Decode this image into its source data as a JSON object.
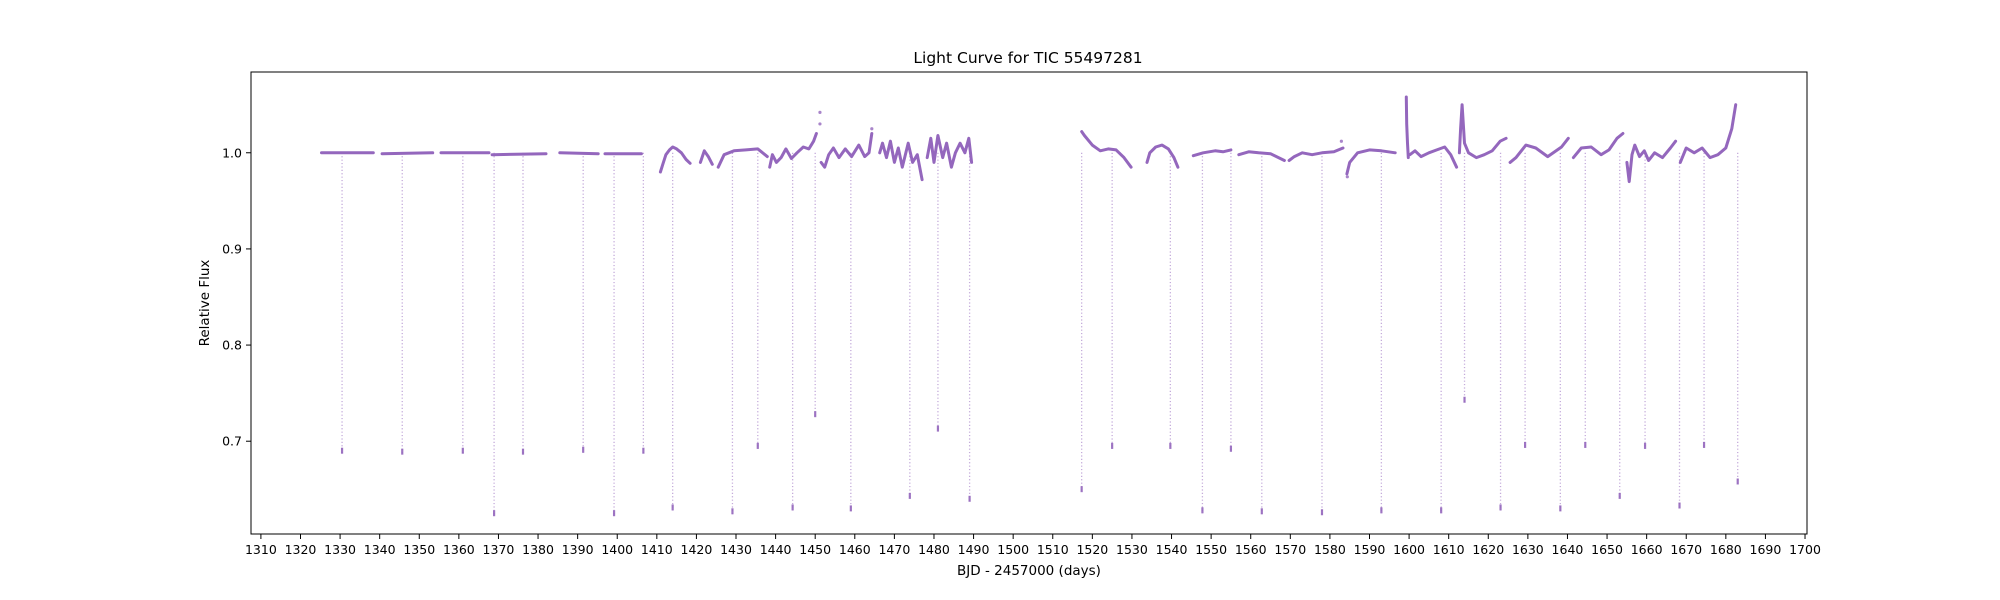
{
  "chart_data": {
    "type": "scatter",
    "title": "Light Curve for TIC 55497281",
    "xlabel": "BJD - 2457000 (days)",
    "ylabel": "Relative Flux",
    "xlim": [
      1307.5,
      1700.5
    ],
    "ylim": [
      0.6035,
      1.084
    ],
    "xticks": [
      1310,
      1320,
      1330,
      1340,
      1350,
      1360,
      1370,
      1380,
      1390,
      1400,
      1410,
      1420,
      1430,
      1440,
      1450,
      1460,
      1470,
      1480,
      1490,
      1500,
      1510,
      1520,
      1530,
      1540,
      1550,
      1560,
      1570,
      1580,
      1590,
      1600,
      1610,
      1620,
      1630,
      1640,
      1650,
      1660,
      1670,
      1680,
      1690,
      1700
    ],
    "yticks": [
      0.7,
      0.8,
      0.9,
      1.0
    ],
    "grid": false,
    "marker_color": "#9467bd",
    "series": [
      {
        "baseline_segments": [
          {
            "x": [
              1325.3,
              1338.4
            ],
            "y": [
              1.0,
              1.0
            ]
          },
          {
            "x": [
              1340.6,
              1353.4
            ],
            "y": [
              0.999,
              1.0
            ]
          },
          {
            "x": [
              1355.5,
              1367.6
            ],
            "y": [
              1.0,
              1.0
            ]
          },
          {
            "x": [
              1368.4,
              1382.0
            ],
            "y": [
              0.998,
              0.999
            ]
          },
          {
            "x": [
              1385.5,
              1395.2
            ],
            "y": [
              1.0,
              0.999
            ]
          },
          {
            "x": [
              1396.9,
              1406.1
            ],
            "y": [
              0.999,
              0.999
            ]
          },
          {
            "x": [
              1410.9,
              1411.5,
              1412.3,
              1413.2,
              1414.0,
              1415.0,
              1416.2,
              1417.4,
              1418.4
            ],
            "y": [
              0.98,
              0.988,
              0.998,
              1.003,
              1.006,
              1.004,
              1.0,
              0.993,
              0.989
            ]
          },
          {
            "x": [
              1421.0,
              1422.0,
              1423.0,
              1424.0
            ],
            "y": [
              0.99,
              1.002,
              0.996,
              0.988
            ]
          },
          {
            "x": [
              1425.5,
              1427.0,
              1429.5,
              1432.5,
              1435.5,
              1437.9
            ],
            "y": [
              0.985,
              0.998,
              1.002,
              1.003,
              1.004,
              0.996
            ]
          },
          {
            "x": [
              1438.5,
              1439.2,
              1440.2,
              1441.4,
              1442.6,
              1444.0,
              1445.4,
              1447.0,
              1448.4,
              1449.6,
              1450.3
            ],
            "y": [
              0.985,
              0.998,
              0.99,
              0.995,
              1.004,
              0.994,
              1.0,
              1.006,
              1.004,
              1.012,
              1.02
            ]
          },
          {
            "x": [
              1451.5,
              1452.4,
              1453.4,
              1454.6,
              1456.0,
              1457.6,
              1459.2,
              1461.0,
              1462.5,
              1463.6,
              1464.3
            ],
            "y": [
              0.99,
              0.985,
              0.998,
              1.005,
              0.995,
              1.004,
              0.996,
              1.008,
              0.996,
              1.0,
              1.02
            ]
          },
          {
            "x": [
              1466.3,
              1467.0,
              1468.0,
              1469.0,
              1470.0,
              1471.0,
              1472.0,
              1473.5,
              1474.6,
              1475.8,
              1477.0
            ],
            "y": [
              1.0,
              1.01,
              0.995,
              1.012,
              0.99,
              1.005,
              0.985,
              1.01,
              0.99,
              0.998,
              0.972
            ]
          },
          {
            "x": [
              1478.3,
              1479.2,
              1480.0,
              1481.0,
              1482.2,
              1483.2,
              1484.4,
              1485.4,
              1486.6,
              1487.8,
              1488.8,
              1489.5
            ],
            "y": [
              0.995,
              1.015,
              0.99,
              1.018,
              0.995,
              1.01,
              0.985,
              1.0,
              1.01,
              1.0,
              1.015,
              0.99
            ]
          },
          {
            "x": [
              1517.3,
              1518.0,
              1520.0,
              1522.0,
              1524.0,
              1526.0,
              1528.0,
              1529.8
            ],
            "y": [
              1.022,
              1.018,
              1.008,
              1.002,
              1.004,
              1.003,
              0.995,
              0.985
            ]
          },
          {
            "x": [
              1533.8,
              1534.5,
              1536.0,
              1537.6,
              1539.2,
              1540.6,
              1541.6
            ],
            "y": [
              0.99,
              1.0,
              1.006,
              1.008,
              1.004,
              0.995,
              0.985
            ]
          },
          {
            "x": [
              1545.5,
              1548.0,
              1551.0,
              1553.0,
              1555.0
            ],
            "y": [
              0.997,
              1.0,
              1.002,
              1.001,
              1.003
            ]
          },
          {
            "x": [
              1557.0,
              1559.5,
              1562.0,
              1565.0,
              1568.5
            ],
            "y": [
              0.998,
              1.001,
              1.0,
              0.999,
              0.992
            ]
          },
          {
            "x": [
              1569.7,
              1571.0,
              1573.0,
              1575.5,
              1578.0,
              1581.0,
              1583.3
            ],
            "y": [
              0.992,
              0.996,
              1.0,
              0.998,
              1.0,
              1.001,
              1.005
            ]
          },
          {
            "x": [
              1584.3,
              1585.0,
              1587.0,
              1590.0,
              1593.0,
              1596.5
            ],
            "y": [
              0.978,
              0.99,
              1.0,
              1.003,
              1.002,
              1.0
            ]
          },
          {
            "x": [
              1599.3,
              1599.4,
              1599.6,
              1599.8
            ],
            "y": [
              1.058,
              1.03,
              1.01,
              0.995
            ]
          },
          {
            "x": [
              1600.2,
              1601.5,
              1603.0,
              1605.0,
              1607.0,
              1609.0,
              1610.5,
              1612.0
            ],
            "y": [
              0.998,
              1.002,
              0.996,
              1.0,
              1.003,
              1.006,
              0.998,
              0.985
            ]
          },
          {
            "x": [
              1612.7,
              1613.0,
              1613.4,
              1614.0,
              1615.0,
              1617.0,
              1619.0,
              1621.0,
              1623.0,
              1624.5
            ],
            "y": [
              1.0,
              1.025,
              1.05,
              1.01,
              1.0,
              0.995,
              0.998,
              1.002,
              1.012,
              1.015
            ]
          },
          {
            "x": [
              1625.5,
              1627.0,
              1629.5,
              1632.0,
              1635.0,
              1638.5,
              1640.2
            ],
            "y": [
              0.99,
              0.995,
              1.008,
              1.005,
              0.996,
              1.006,
              1.015
            ]
          },
          {
            "x": [
              1641.5,
              1643.5,
              1646.0,
              1648.5,
              1650.5,
              1652.5,
              1654.0
            ],
            "y": [
              0.995,
              1.005,
              1.006,
              0.998,
              1.003,
              1.015,
              1.02
            ]
          },
          {
            "x": [
              1655.0,
              1655.6,
              1656.3,
              1657.0,
              1658.2,
              1659.4,
              1660.5,
              1662.0,
              1664.0,
              1666.0,
              1667.3
            ],
            "y": [
              0.99,
              0.97,
              0.998,
              1.008,
              0.996,
              1.002,
              0.992,
              1.0,
              0.995,
              1.005,
              1.012
            ]
          },
          {
            "x": [
              1668.5,
              1670.0,
              1672.0,
              1674.0,
              1676.0,
              1678.0,
              1680.0,
              1681.5,
              1682.5
            ],
            "y": [
              0.99,
              1.005,
              1.0,
              1.005,
              0.995,
              0.998,
              1.005,
              1.025,
              1.05
            ]
          }
        ],
        "transit_dips": [
          {
            "t": 1330.5,
            "min": 0.687
          },
          {
            "t": 1345.7,
            "min": 0.686
          },
          {
            "t": 1361.0,
            "min": 0.687
          },
          {
            "t": 1368.9,
            "min": 0.622
          },
          {
            "t": 1376.2,
            "min": 0.686
          },
          {
            "t": 1391.4,
            "min": 0.688
          },
          {
            "t": 1399.2,
            "min": 0.622
          },
          {
            "t": 1406.6,
            "min": 0.687
          },
          {
            "t": 1414.0,
            "min": 0.628
          },
          {
            "t": 1429.1,
            "min": 0.624
          },
          {
            "t": 1435.5,
            "min": 0.692
          },
          {
            "t": 1444.3,
            "min": 0.628
          },
          {
            "t": 1450.0,
            "min": 0.725
          },
          {
            "t": 1459.0,
            "min": 0.627
          },
          {
            "t": 1473.9,
            "min": 0.64
          },
          {
            "t": 1481.0,
            "min": 0.71
          },
          {
            "t": 1489.0,
            "min": 0.637
          },
          {
            "t": 1517.3,
            "min": 0.647
          },
          {
            "t": 1525.0,
            "min": 0.692
          },
          {
            "t": 1539.7,
            "min": 0.692
          },
          {
            "t": 1547.8,
            "min": 0.625
          },
          {
            "t": 1555.0,
            "min": 0.689
          },
          {
            "t": 1562.8,
            "min": 0.624
          },
          {
            "t": 1578.0,
            "min": 0.623
          },
          {
            "t": 1593.0,
            "min": 0.625
          },
          {
            "t": 1608.1,
            "min": 0.625
          },
          {
            "t": 1614.0,
            "min": 0.74
          },
          {
            "t": 1623.1,
            "min": 0.628
          },
          {
            "t": 1629.3,
            "min": 0.693
          },
          {
            "t": 1638.2,
            "min": 0.627
          },
          {
            "t": 1644.5,
            "min": 0.693
          },
          {
            "t": 1653.2,
            "min": 0.64
          },
          {
            "t": 1659.6,
            "min": 0.692
          },
          {
            "t": 1668.3,
            "min": 0.63
          },
          {
            "t": 1674.5,
            "min": 0.693
          },
          {
            "t": 1683.0,
            "min": 0.655
          }
        ],
        "outliers": [
          {
            "x": 1451.2,
            "y": 1.042
          },
          {
            "x": 1451.2,
            "y": 1.03
          },
          {
            "x": 1464.3,
            "y": 1.025
          },
          {
            "x": 1582.9,
            "y": 1.012
          },
          {
            "x": 1584.4,
            "y": 0.975
          }
        ]
      }
    ]
  }
}
